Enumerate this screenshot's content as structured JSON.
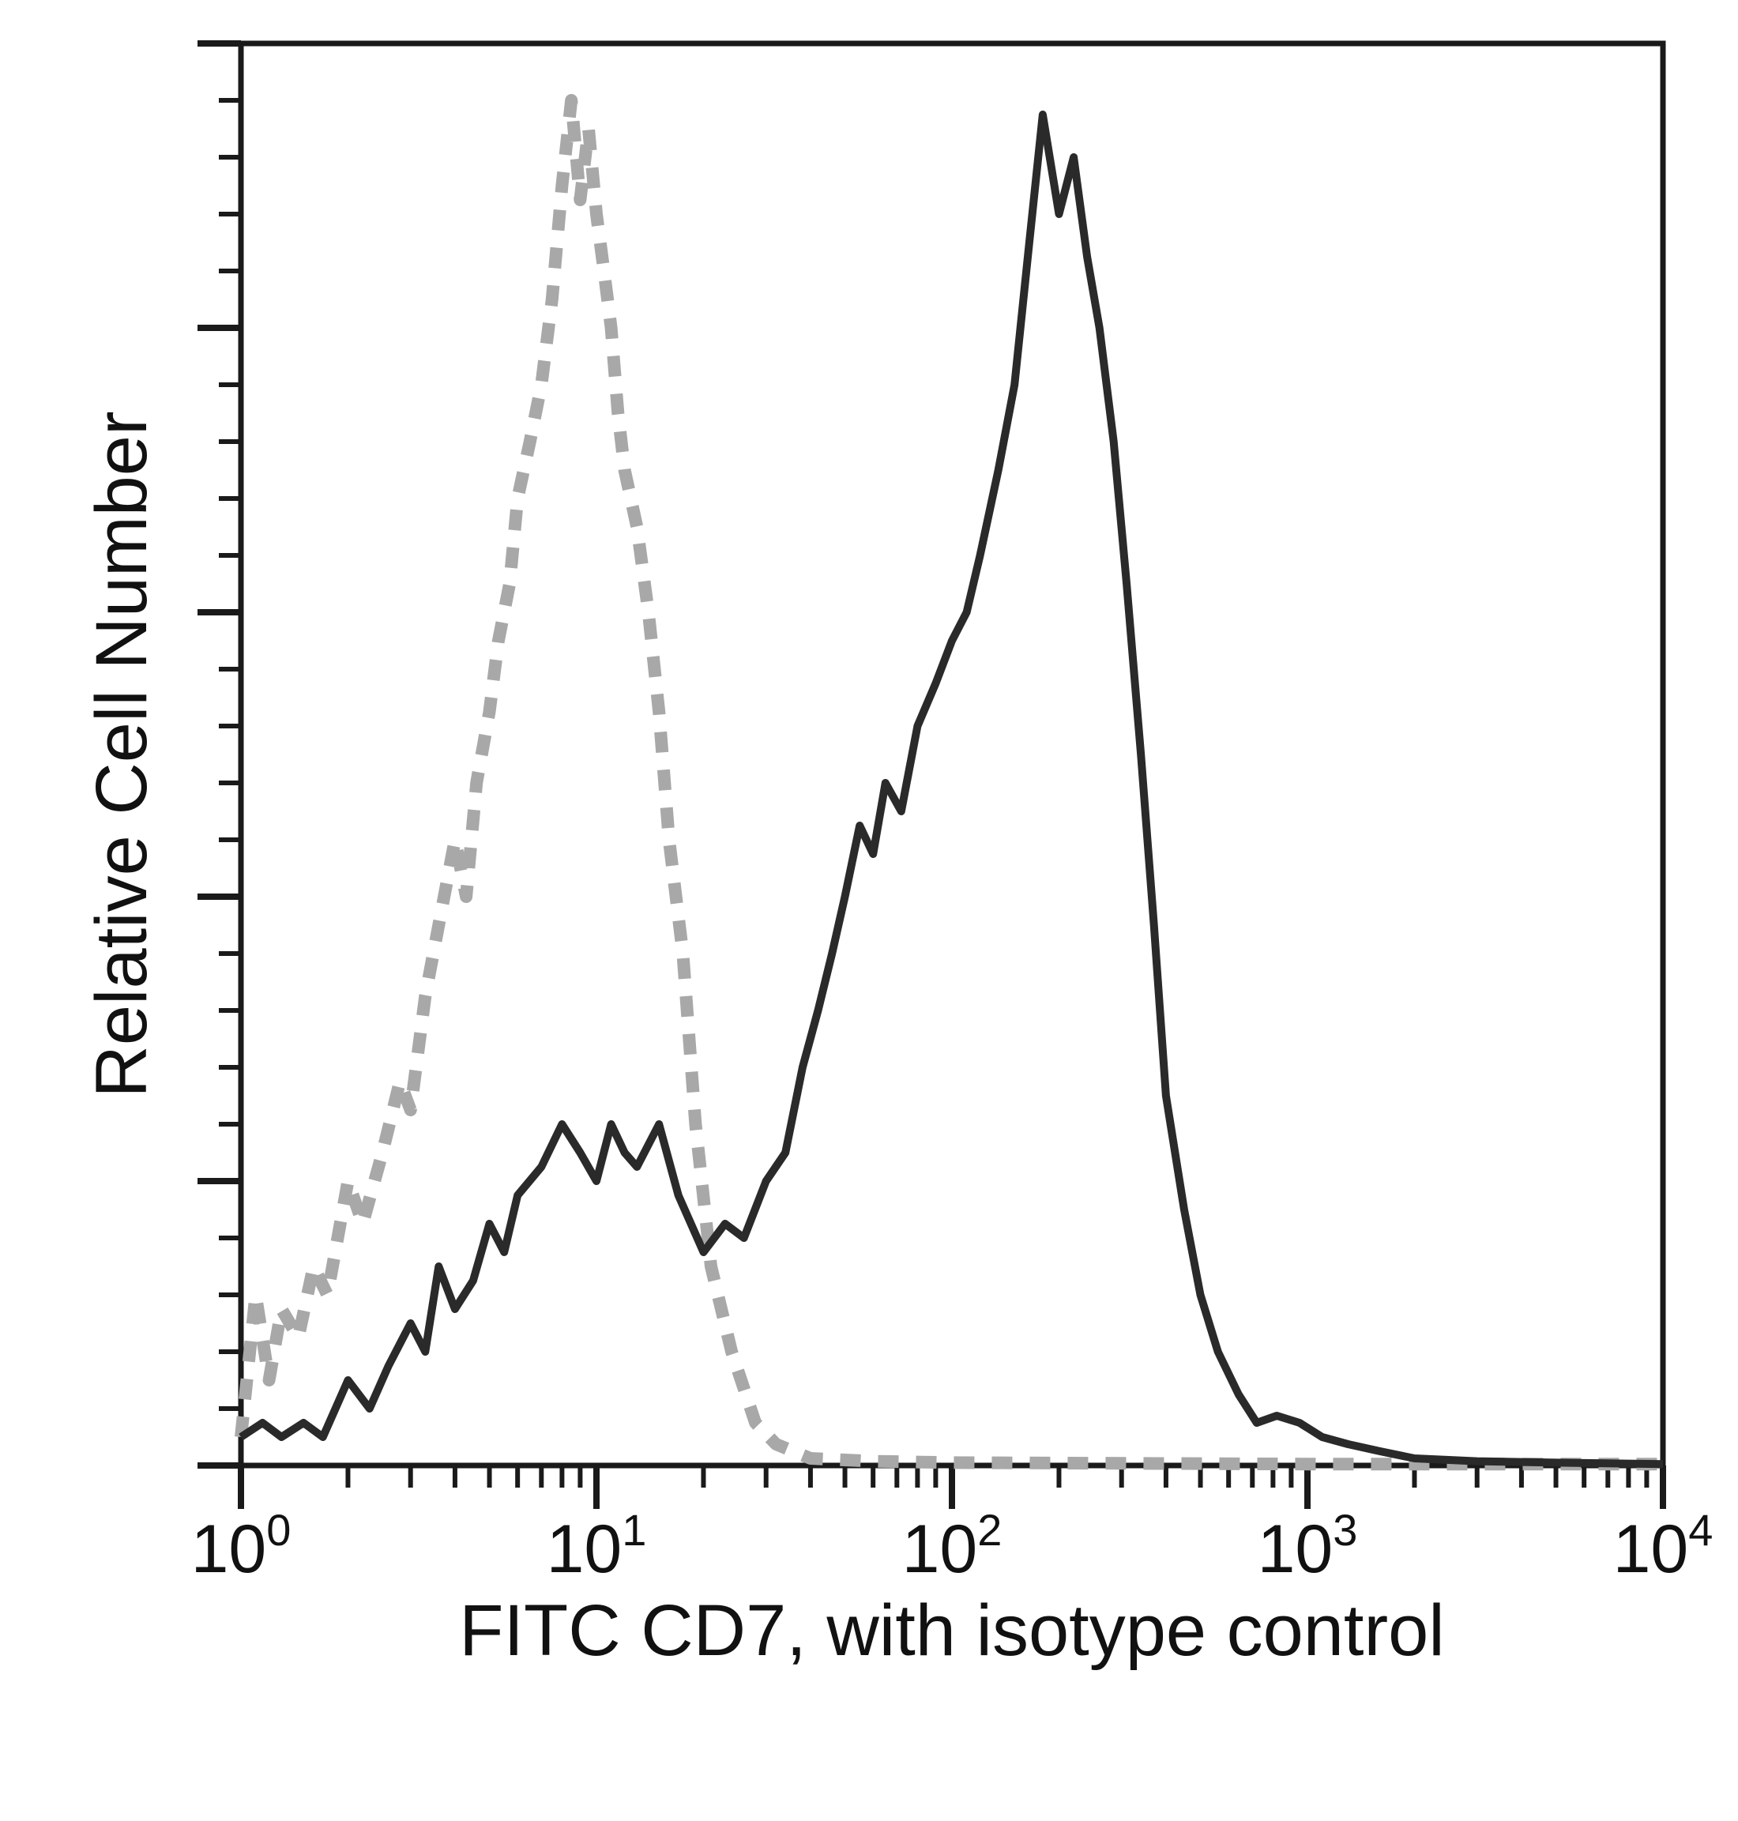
{
  "chart_data": {
    "type": "line",
    "title": "",
    "xlabel": "FITC CD7, with isotype control",
    "ylabel": "Relative Cell Number",
    "x_scale": "log",
    "xlim": [
      1,
      10000
    ],
    "ylim": [
      0,
      100
    ],
    "x_ticks": [
      {
        "value": 1,
        "base": "10",
        "exp": "0"
      },
      {
        "value": 10,
        "base": "10",
        "exp": "1"
      },
      {
        "value": 100,
        "base": "10",
        "exp": "2"
      },
      {
        "value": 1000,
        "base": "10",
        "exp": "3"
      },
      {
        "value": 10000,
        "base": "10",
        "exp": "4"
      }
    ],
    "y_major_ticks": [
      0,
      20,
      40,
      60,
      80,
      100
    ],
    "grid": false,
    "legend": "none",
    "series": [
      {
        "style": "dashed",
        "color": "#a8a8a8",
        "points": [
          [
            1.0,
            2
          ],
          [
            1.1,
            12
          ],
          [
            1.2,
            6
          ],
          [
            1.3,
            11
          ],
          [
            1.45,
            9
          ],
          [
            1.6,
            14
          ],
          [
            1.75,
            12
          ],
          [
            2.0,
            20
          ],
          [
            2.2,
            17
          ],
          [
            2.5,
            22
          ],
          [
            2.8,
            27
          ],
          [
            3.0,
            25
          ],
          [
            3.3,
            33
          ],
          [
            3.6,
            38
          ],
          [
            4.0,
            44
          ],
          [
            4.3,
            40
          ],
          [
            4.6,
            48
          ],
          [
            5.0,
            53
          ],
          [
            5.3,
            58
          ],
          [
            5.7,
            62
          ],
          [
            6.0,
            68
          ],
          [
            6.5,
            72
          ],
          [
            7.0,
            76
          ],
          [
            7.5,
            82
          ],
          [
            8.0,
            90
          ],
          [
            8.5,
            96
          ],
          [
            9.0,
            89
          ],
          [
            9.5,
            94
          ],
          [
            10.0,
            88
          ],
          [
            10.5,
            84
          ],
          [
            11.0,
            80
          ],
          [
            11.5,
            74
          ],
          [
            12.0,
            70
          ],
          [
            13.0,
            66
          ],
          [
            14.0,
            60
          ],
          [
            15.0,
            53
          ],
          [
            16.0,
            44
          ],
          [
            17.5,
            36
          ],
          [
            19.0,
            24
          ],
          [
            21.0,
            14
          ],
          [
            24.0,
            8
          ],
          [
            28.0,
            3
          ],
          [
            32.0,
            1.5
          ],
          [
            40.0,
            0.5
          ],
          [
            60.0,
            0.3
          ],
          [
            100.0,
            0.2
          ],
          [
            1000.0,
            0.1
          ],
          [
            10000.0,
            0.1
          ]
        ]
      },
      {
        "style": "solid",
        "color": "#2a2a2a",
        "points": [
          [
            1.0,
            2
          ],
          [
            1.15,
            3
          ],
          [
            1.3,
            2
          ],
          [
            1.5,
            3
          ],
          [
            1.7,
            2
          ],
          [
            2.0,
            6
          ],
          [
            2.3,
            4
          ],
          [
            2.6,
            7
          ],
          [
            3.0,
            10
          ],
          [
            3.3,
            8
          ],
          [
            3.6,
            14
          ],
          [
            4.0,
            11
          ],
          [
            4.5,
            13
          ],
          [
            5.0,
            17
          ],
          [
            5.5,
            15
          ],
          [
            6.0,
            19
          ],
          [
            7.0,
            21
          ],
          [
            8.0,
            24
          ],
          [
            9.0,
            22
          ],
          [
            10.0,
            20
          ],
          [
            11.0,
            24
          ],
          [
            12.0,
            22
          ],
          [
            13.0,
            21
          ],
          [
            15.0,
            24
          ],
          [
            17.0,
            19
          ],
          [
            20.0,
            15
          ],
          [
            23.0,
            17
          ],
          [
            26.0,
            16
          ],
          [
            30.0,
            20
          ],
          [
            34.0,
            22
          ],
          [
            38.0,
            28
          ],
          [
            42.0,
            32
          ],
          [
            46.0,
            36
          ],
          [
            50.0,
            40
          ],
          [
            55.0,
            45
          ],
          [
            60.0,
            43
          ],
          [
            65.0,
            48
          ],
          [
            72.0,
            46
          ],
          [
            80.0,
            52
          ],
          [
            90.0,
            55
          ],
          [
            100.0,
            58
          ],
          [
            110.0,
            60
          ],
          [
            120.0,
            64
          ],
          [
            135.0,
            70
          ],
          [
            150.0,
            76
          ],
          [
            165.0,
            86
          ],
          [
            180.0,
            95
          ],
          [
            200.0,
            88
          ],
          [
            220.0,
            92
          ],
          [
            240.0,
            85
          ],
          [
            260.0,
            80
          ],
          [
            285.0,
            72
          ],
          [
            310.0,
            62
          ],
          [
            340.0,
            50
          ],
          [
            370.0,
            38
          ],
          [
            400.0,
            26
          ],
          [
            450.0,
            18
          ],
          [
            500.0,
            12
          ],
          [
            560.0,
            8
          ],
          [
            640.0,
            5
          ],
          [
            720.0,
            3
          ],
          [
            820.0,
            3.5
          ],
          [
            950.0,
            3
          ],
          [
            1100.0,
            2
          ],
          [
            1300.0,
            1.5
          ],
          [
            1600.0,
            1
          ],
          [
            2000.0,
            0.5
          ],
          [
            3000.0,
            0.3
          ],
          [
            5000.0,
            0.2
          ],
          [
            10000.0,
            0.1
          ]
        ]
      }
    ]
  }
}
